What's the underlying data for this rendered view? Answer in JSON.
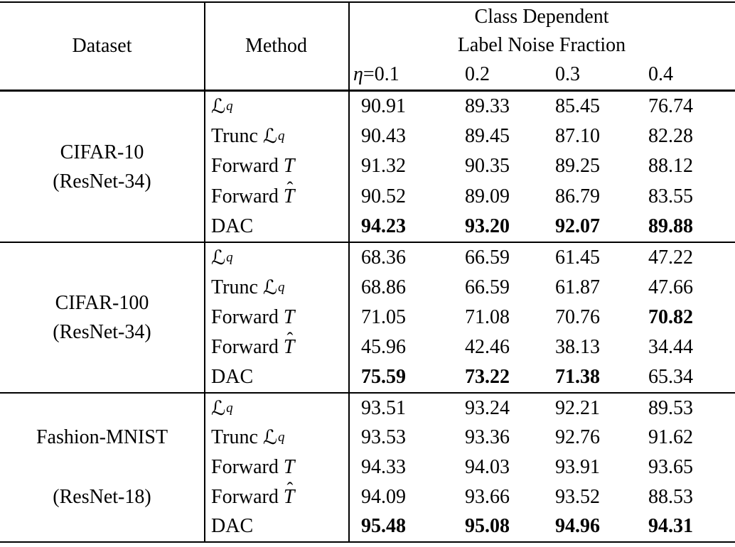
{
  "page": {
    "background": "#ffffff",
    "text_color": "#000000",
    "rule_color": "#000000"
  },
  "table": {
    "header": {
      "dataset": "Dataset",
      "method": "Method",
      "group_title_line1": "Class Dependent",
      "group_title_line2": "Label Noise Fraction",
      "noise": {
        "eta": "η",
        "eq": " =",
        "levels": [
          "0.1",
          "0.2",
          "0.3",
          "0.4"
        ]
      }
    },
    "groups": [
      {
        "dataset_line1": "CIFAR-10",
        "dataset_line2": "(ResNet-34)",
        "spread": false,
        "rows": [
          {
            "method": [
              {
                "t": "ℒ",
                "s": "script"
              },
              {
                "t": "q",
                "s": "sub"
              }
            ],
            "values": [
              "90.91",
              "89.33",
              "85.45",
              "76.74"
            ],
            "bold": [
              false,
              false,
              false,
              false
            ]
          },
          {
            "method": [
              {
                "t": "Trunc ",
                "s": "plain"
              },
              {
                "t": "ℒ",
                "s": "script"
              },
              {
                "t": "q",
                "s": "sub"
              }
            ],
            "values": [
              "90.43",
              "89.45",
              "87.10",
              "82.28"
            ],
            "bold": [
              false,
              false,
              false,
              false
            ]
          },
          {
            "method": [
              {
                "t": "Forward ",
                "s": "plain"
              },
              {
                "t": "T",
                "s": "italic"
              }
            ],
            "values": [
              "91.32",
              "90.35",
              "89.25",
              "88.12"
            ],
            "bold": [
              false,
              false,
              false,
              false
            ]
          },
          {
            "method": [
              {
                "t": "Forward ",
                "s": "plain"
              },
              {
                "t": "T",
                "s": "italic",
                "hat": "ˆ"
              }
            ],
            "values": [
              "90.52",
              "89.09",
              "86.79",
              "83.55"
            ],
            "bold": [
              false,
              false,
              false,
              false
            ]
          },
          {
            "method": [
              {
                "t": "DAC",
                "s": "plain"
              }
            ],
            "values": [
              "94.23",
              "93.20",
              "92.07",
              "89.88"
            ],
            "bold": [
              true,
              true,
              true,
              true
            ]
          }
        ]
      },
      {
        "dataset_line1": "CIFAR-100",
        "dataset_line2": "(ResNet-34)",
        "spread": false,
        "rows": [
          {
            "method": [
              {
                "t": "ℒ",
                "s": "script"
              },
              {
                "t": "q",
                "s": "sub"
              }
            ],
            "values": [
              "68.36",
              "66.59",
              "61.45",
              "47.22"
            ],
            "bold": [
              false,
              false,
              false,
              false
            ]
          },
          {
            "method": [
              {
                "t": "Trunc ",
                "s": "plain"
              },
              {
                "t": "ℒ",
                "s": "script"
              },
              {
                "t": "q",
                "s": "sub"
              }
            ],
            "values": [
              "68.86",
              "66.59",
              "61.87",
              "47.66"
            ],
            "bold": [
              false,
              false,
              false,
              false
            ]
          },
          {
            "method": [
              {
                "t": "Forward ",
                "s": "plain"
              },
              {
                "t": "T",
                "s": "italic"
              }
            ],
            "values": [
              "71.05",
              "71.08",
              "70.76",
              "70.82"
            ],
            "bold": [
              false,
              false,
              false,
              true
            ]
          },
          {
            "method": [
              {
                "t": "Forward ",
                "s": "plain"
              },
              {
                "t": "T",
                "s": "italic",
                "hat": "ˆ"
              }
            ],
            "values": [
              "45.96",
              "42.46",
              "38.13",
              "34.44"
            ],
            "bold": [
              false,
              false,
              false,
              false
            ]
          },
          {
            "method": [
              {
                "t": "DAC",
                "s": "plain"
              }
            ],
            "values": [
              "75.59",
              "73.22",
              "71.38",
              "65.34"
            ],
            "bold": [
              true,
              true,
              true,
              false
            ]
          }
        ]
      },
      {
        "dataset_line1": "Fashion-MNIST",
        "dataset_line2": "(ResNet-18)",
        "spread": true,
        "rows": [
          {
            "method": [
              {
                "t": "ℒ",
                "s": "script"
              },
              {
                "t": "q",
                "s": "sub"
              }
            ],
            "values": [
              "93.51",
              "93.24",
              "92.21",
              "89.53"
            ],
            "bold": [
              false,
              false,
              false,
              false
            ]
          },
          {
            "method": [
              {
                "t": "Trunc ",
                "s": "plain"
              },
              {
                "t": "ℒ",
                "s": "script"
              },
              {
                "t": "q",
                "s": "sub"
              }
            ],
            "values": [
              "93.53",
              "93.36",
              "92.76",
              "91.62"
            ],
            "bold": [
              false,
              false,
              false,
              false
            ]
          },
          {
            "method": [
              {
                "t": "Forward ",
                "s": "plain"
              },
              {
                "t": "T",
                "s": "italic"
              }
            ],
            "values": [
              "94.33",
              "94.03",
              "93.91",
              "93.65"
            ],
            "bold": [
              false,
              false,
              false,
              false
            ]
          },
          {
            "method": [
              {
                "t": "Forward ",
                "s": "plain"
              },
              {
                "t": "T",
                "s": "italic",
                "hat": "ˆ"
              }
            ],
            "values": [
              "94.09",
              "93.66",
              "93.52",
              "88.53"
            ],
            "bold": [
              false,
              false,
              false,
              false
            ]
          },
          {
            "method": [
              {
                "t": "DAC",
                "s": "plain"
              }
            ],
            "values": [
              "95.48",
              "95.08",
              "94.96",
              "94.31"
            ],
            "bold": [
              true,
              true,
              true,
              true
            ]
          }
        ]
      }
    ]
  },
  "chart_data": {
    "type": "table",
    "title": "Class Dependent Label Noise Fraction",
    "columns": [
      "Dataset",
      "Method",
      "η=0.1",
      "0.2",
      "0.3",
      "0.4"
    ],
    "rows": [
      [
        "CIFAR-10 (ResNet-34)",
        "Lq",
        90.91,
        89.33,
        85.45,
        76.74
      ],
      [
        "CIFAR-10 (ResNet-34)",
        "Trunc Lq",
        90.43,
        89.45,
        87.1,
        82.28
      ],
      [
        "CIFAR-10 (ResNet-34)",
        "Forward T",
        91.32,
        90.35,
        89.25,
        88.12
      ],
      [
        "CIFAR-10 (ResNet-34)",
        "Forward T-hat",
        90.52,
        89.09,
        86.79,
        83.55
      ],
      [
        "CIFAR-10 (ResNet-34)",
        "DAC",
        94.23,
        93.2,
        92.07,
        89.88
      ],
      [
        "CIFAR-100 (ResNet-34)",
        "Lq",
        68.36,
        66.59,
        61.45,
        47.22
      ],
      [
        "CIFAR-100 (ResNet-34)",
        "Trunc Lq",
        68.86,
        66.59,
        61.87,
        47.66
      ],
      [
        "CIFAR-100 (ResNet-34)",
        "Forward T",
        71.05,
        71.08,
        70.76,
        70.82
      ],
      [
        "CIFAR-100 (ResNet-34)",
        "Forward T-hat",
        45.96,
        42.46,
        38.13,
        34.44
      ],
      [
        "CIFAR-100 (ResNet-34)",
        "DAC",
        75.59,
        73.22,
        71.38,
        65.34
      ],
      [
        "Fashion-MNIST (ResNet-18)",
        "Lq",
        93.51,
        93.24,
        92.21,
        89.53
      ],
      [
        "Fashion-MNIST (ResNet-18)",
        "Trunc Lq",
        93.53,
        93.36,
        92.76,
        91.62
      ],
      [
        "Fashion-MNIST (ResNet-18)",
        "Forward T",
        94.33,
        94.03,
        93.91,
        93.65
      ],
      [
        "Fashion-MNIST (ResNet-18)",
        "Forward T-hat",
        94.09,
        93.66,
        93.52,
        88.53
      ],
      [
        "Fashion-MNIST (ResNet-18)",
        "DAC",
        95.48,
        95.08,
        94.96,
        94.31
      ]
    ]
  }
}
